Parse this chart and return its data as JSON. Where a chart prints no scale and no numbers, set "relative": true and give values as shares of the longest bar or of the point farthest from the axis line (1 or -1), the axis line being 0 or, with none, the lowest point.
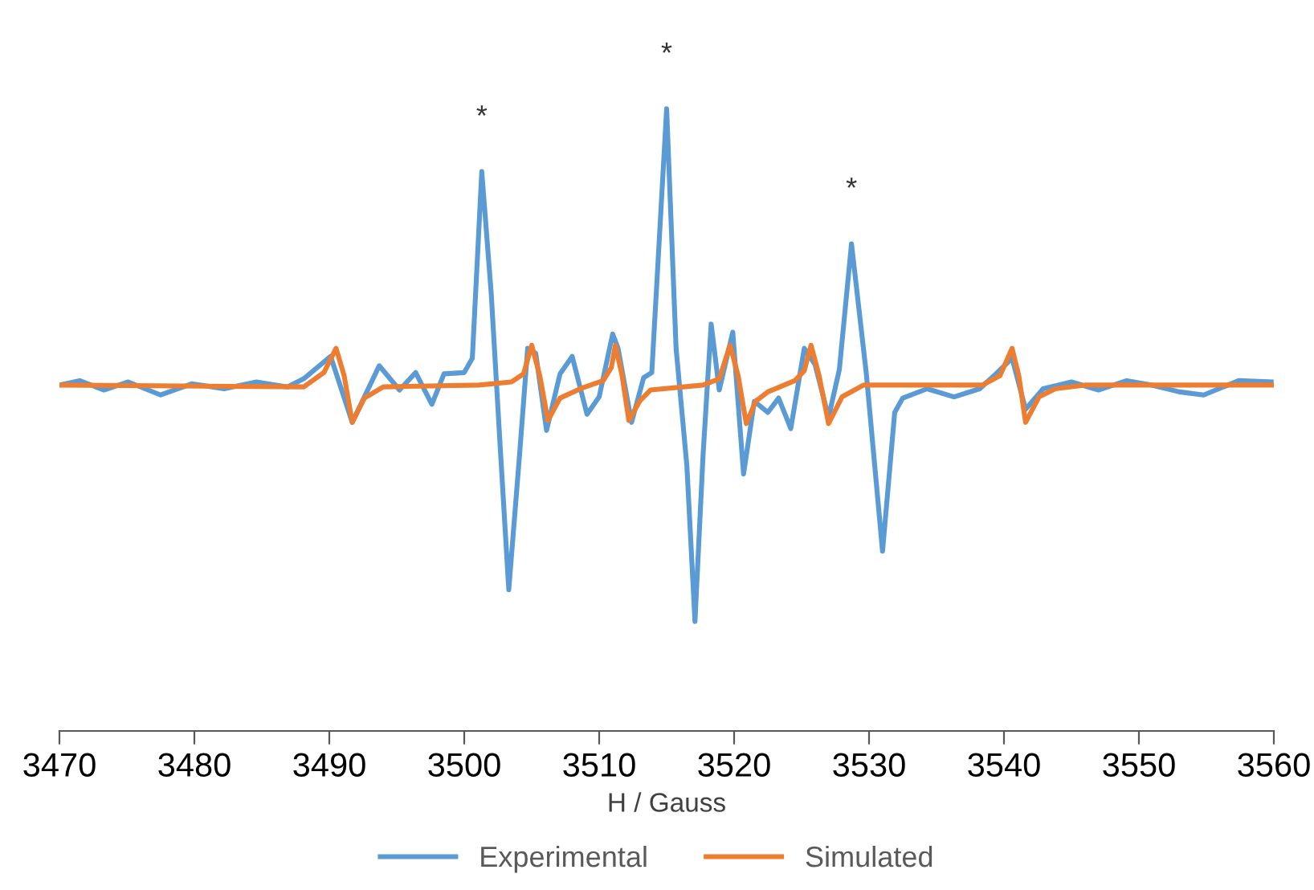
{
  "chart_data": {
    "type": "line",
    "xlabel": "H / Gauss",
    "relative": true,
    "tick_labels": "x",
    "grid": false,
    "legend": "bottom",
    "marker": "none",
    "line_style": "solid",
    "xlim": [
      3470,
      3560
    ],
    "xticks": [
      3470,
      3480,
      3490,
      3500,
      3510,
      3520,
      3530,
      3540,
      3550,
      3560
    ],
    "annotations": [
      "*",
      "*",
      "*"
    ],
    "series": [
      {
        "name": "Experimental",
        "color": "#5b9bd5",
        "x": [
          3470.0,
          3471.5,
          3473.3,
          3475.1,
          3477.5,
          3479.8,
          3482.2,
          3484.6,
          3486.9,
          3488.1,
          3490.1,
          3491.7,
          3493.7,
          3495.2,
          3496.4,
          3497.6,
          3498.5,
          3500.0,
          3500.6,
          3501.3,
          3502.0,
          3502.7,
          3503.3,
          3504.1,
          3504.7,
          3505.3,
          3506.1,
          3507.1,
          3508.0,
          3509.1,
          3510.0,
          3511.0,
          3511.4,
          3512.4,
          3513.3,
          3513.9,
          3515.0,
          3515.7,
          3516.5,
          3517.1,
          3517.7,
          3518.3,
          3518.9,
          3519.9,
          3520.7,
          3521.5,
          3522.5,
          3523.3,
          3524.2,
          3525.2,
          3526.0,
          3527.0,
          3527.8,
          3528.7,
          3529.8,
          3531.0,
          3531.9,
          3532.5,
          3534.3,
          3536.3,
          3538.2,
          3539.4,
          3540.6,
          3541.6,
          3542.9,
          3545.0,
          3547.0,
          3549.1,
          3550.9,
          3553.0,
          3554.8,
          3557.4,
          3559.8
        ],
        "values": [
          0.556,
          0.563,
          0.548,
          0.561,
          0.54,
          0.558,
          0.55,
          0.561,
          0.553,
          0.566,
          0.602,
          0.496,
          0.587,
          0.548,
          0.576,
          0.525,
          0.574,
          0.576,
          0.599,
          0.899,
          0.703,
          0.444,
          0.227,
          0.444,
          0.615,
          0.607,
          0.483,
          0.574,
          0.602,
          0.509,
          0.537,
          0.638,
          0.615,
          0.496,
          0.568,
          0.576,
          1.0,
          0.615,
          0.426,
          0.176,
          0.444,
          0.654,
          0.548,
          0.641,
          0.413,
          0.53,
          0.512,
          0.535,
          0.486,
          0.615,
          0.589,
          0.504,
          0.581,
          0.783,
          0.574,
          0.289,
          0.512,
          0.535,
          0.55,
          0.537,
          0.55,
          0.574,
          0.599,
          0.517,
          0.55,
          0.561,
          0.548,
          0.563,
          0.556,
          0.545,
          0.54,
          0.563,
          0.561
        ]
      },
      {
        "name": "Simulated",
        "color": "#ed7d31",
        "x": [
          3470.0,
          3488.1,
          3489.6,
          3490.5,
          3491.1,
          3491.7,
          3492.6,
          3494.0,
          3501.1,
          3503.5,
          3504.4,
          3505.0,
          3505.6,
          3506.2,
          3507.1,
          3508.6,
          3510.3,
          3510.9,
          3511.2,
          3511.7,
          3512.2,
          3513.0,
          3513.8,
          3517.7,
          3518.9,
          3519.7,
          3520.3,
          3520.9,
          3521.6,
          3522.5,
          3524.5,
          3525.2,
          3525.7,
          3526.3,
          3527.0,
          3528.0,
          3529.6,
          3538.4,
          3539.7,
          3540.6,
          3541.1,
          3541.6,
          3542.6,
          3543.8,
          3546.1,
          3560.0
        ],
        "values": [
          0.556,
          0.553,
          0.576,
          0.615,
          0.571,
          0.496,
          0.535,
          0.553,
          0.556,
          0.561,
          0.574,
          0.62,
          0.571,
          0.499,
          0.535,
          0.55,
          0.563,
          0.584,
          0.62,
          0.571,
          0.499,
          0.53,
          0.548,
          0.556,
          0.566,
          0.62,
          0.571,
          0.494,
          0.53,
          0.545,
          0.563,
          0.579,
          0.62,
          0.571,
          0.494,
          0.537,
          0.556,
          0.556,
          0.571,
          0.615,
          0.571,
          0.496,
          0.537,
          0.55,
          0.556,
          0.556
        ]
      }
    ]
  }
}
